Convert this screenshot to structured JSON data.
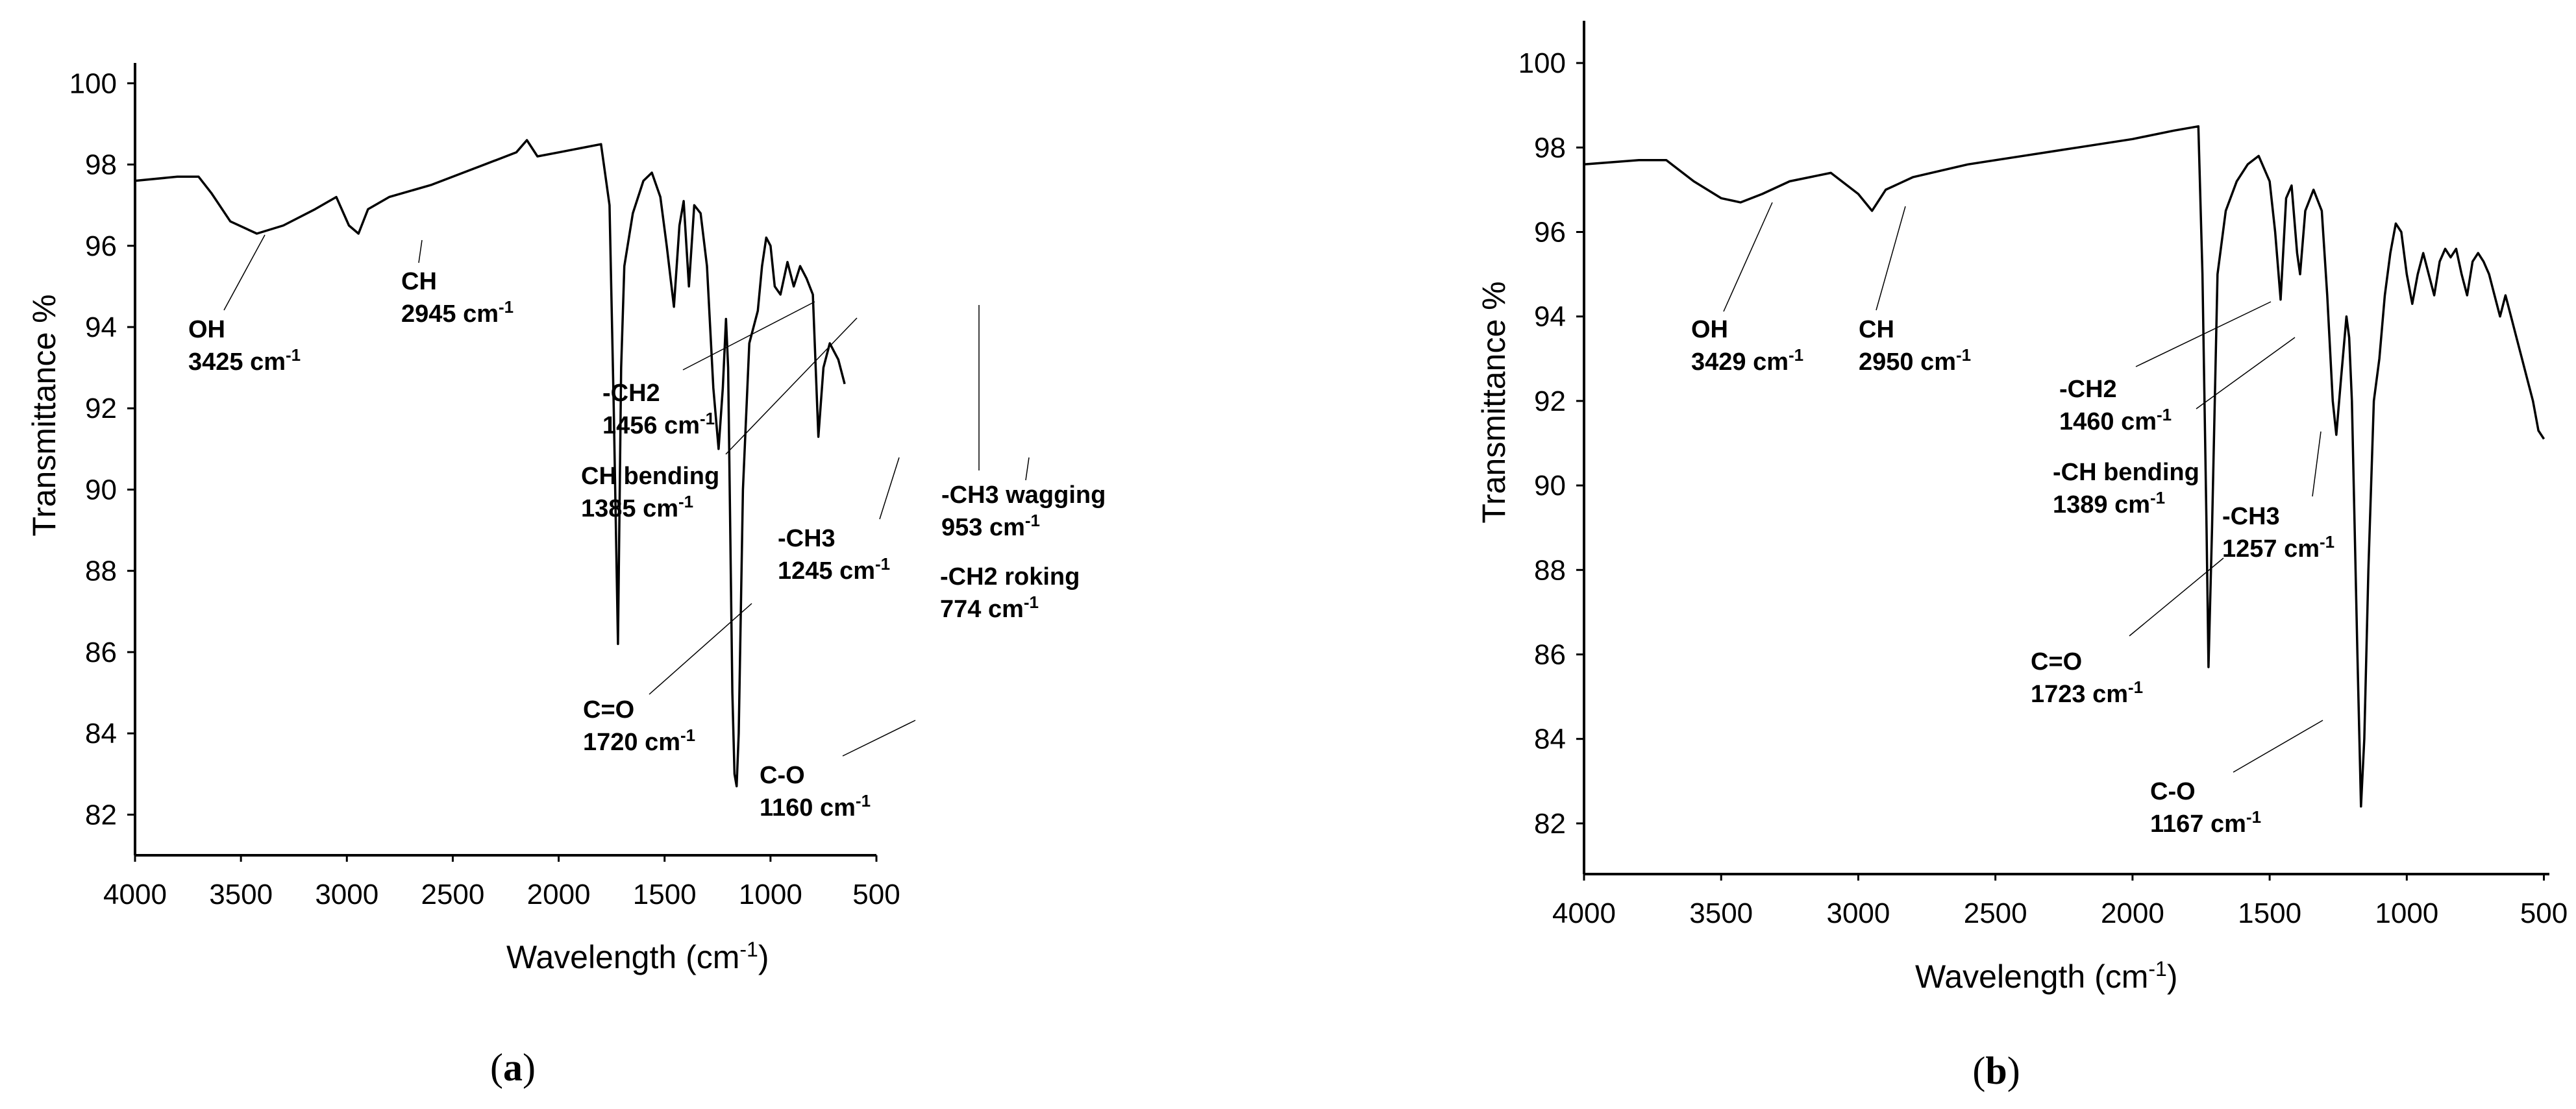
{
  "chart_data": [
    {
      "type": "line",
      "panel_label": "a",
      "xlabel": "Wavelength (cm",
      "xlabel_sup": "-1",
      "xlabel_end": ")",
      "ylabel": "Transmittance %",
      "xlim": [
        4000,
        500
      ],
      "ylim": [
        81,
        100.5
      ],
      "x_ticks": [
        4000,
        3500,
        3000,
        2500,
        2000,
        1500,
        1000,
        500
      ],
      "y_ticks": [
        100,
        98,
        96,
        94,
        92,
        90,
        88,
        86,
        84,
        82
      ],
      "series": [
        {
          "name": "spectrum a",
          "x": [
            4000,
            3800,
            3700,
            3640,
            3550,
            3425,
            3300,
            3150,
            3050,
            2990,
            2945,
            2900,
            2800,
            2600,
            2400,
            2200,
            2150,
            2100,
            2000,
            1900,
            1800,
            1760,
            1740,
            1720,
            1705,
            1690,
            1650,
            1600,
            1560,
            1520,
            1490,
            1456,
            1430,
            1410,
            1385,
            1360,
            1330,
            1300,
            1270,
            1245,
            1225,
            1210,
            1200,
            1180,
            1170,
            1160,
            1150,
            1130,
            1100,
            1060,
            1040,
            1020,
            1000,
            980,
            953,
            920,
            890,
            860,
            830,
            800,
            774,
            750,
            720,
            700,
            680,
            650
          ],
          "y": [
            97.6,
            97.7,
            97.7,
            97.3,
            96.6,
            96.3,
            96.5,
            96.9,
            97.2,
            96.5,
            96.3,
            96.9,
            97.2,
            97.5,
            97.9,
            98.3,
            98.6,
            98.2,
            98.3,
            98.4,
            98.5,
            97.0,
            92.0,
            86.2,
            93.0,
            95.5,
            96.8,
            97.6,
            97.8,
            97.2,
            96.0,
            94.5,
            96.5,
            97.1,
            95.0,
            97.0,
            96.8,
            95.5,
            92.5,
            91.0,
            92.5,
            94.2,
            93.0,
            85.0,
            83.0,
            82.7,
            84.0,
            90.0,
            93.6,
            94.4,
            95.5,
            96.2,
            96.0,
            95.0,
            94.8,
            95.6,
            95.0,
            95.5,
            95.2,
            94.8,
            91.3,
            93.0,
            93.6,
            93.4,
            93.2,
            92.6
          ]
        }
      ],
      "annotations": [
        {
          "label": "OH",
          "wavenumber": "3425 cm",
          "sup": "-1"
        },
        {
          "label": "CH",
          "wavenumber": "2945 cm",
          "sup": "-1"
        },
        {
          "label": "-CH2",
          "wavenumber": "1456 cm",
          "sup": "-1"
        },
        {
          "label": "CH bending",
          "wavenumber": "1385 cm",
          "sup": "-1"
        },
        {
          "label": "-CH3",
          "wavenumber": "1245 cm",
          "sup": "-1"
        },
        {
          "label": "-CH3 wagging",
          "wavenumber": "953 cm",
          "sup": "-1"
        },
        {
          "label": "-CH2 roking",
          "wavenumber": "774 cm",
          "sup": "-1"
        },
        {
          "label": "C=O",
          "wavenumber": "1720 cm",
          "sup": "-1"
        },
        {
          "label": "C-O",
          "wavenumber": "1160 cm",
          "sup": "-1"
        }
      ]
    },
    {
      "type": "line",
      "panel_label": "b",
      "xlabel": "Wavelength (cm",
      "xlabel_sup": "-1",
      "xlabel_end": ")",
      "ylabel": "Transmittance %",
      "xlim": [
        4000,
        480
      ],
      "ylim": [
        80.8,
        101
      ],
      "x_ticks": [
        4000,
        3500,
        3000,
        2500,
        2000,
        1500,
        1000,
        500
      ],
      "y_ticks": [
        100,
        98,
        96,
        94,
        92,
        90,
        88,
        86,
        84,
        82
      ],
      "series": [
        {
          "name": "spectrum b",
          "x": [
            4000,
            3800,
            3700,
            3600,
            3500,
            3429,
            3350,
            3250,
            3100,
            3000,
            2950,
            2900,
            2800,
            2600,
            2400,
            2200,
            2000,
            1850,
            1760,
            1745,
            1730,
            1723,
            1710,
            1690,
            1660,
            1620,
            1580,
            1540,
            1500,
            1480,
            1460,
            1440,
            1420,
            1400,
            1389,
            1370,
            1340,
            1310,
            1290,
            1270,
            1257,
            1240,
            1220,
            1210,
            1200,
            1180,
            1167,
            1155,
            1140,
            1120,
            1100,
            1080,
            1060,
            1040,
            1020,
            1000,
            980,
            960,
            940,
            920,
            900,
            880,
            860,
            840,
            820,
            800,
            780,
            760,
            740,
            720,
            700,
            680,
            660,
            640,
            620,
            600,
            580,
            560,
            540,
            520,
            500
          ],
          "y": [
            97.6,
            97.7,
            97.7,
            97.2,
            96.8,
            96.7,
            96.9,
            97.2,
            97.4,
            96.9,
            96.5,
            97.0,
            97.3,
            97.6,
            97.8,
            98.0,
            98.2,
            98.4,
            98.5,
            95.0,
            89.0,
            85.7,
            89.0,
            95.0,
            96.5,
            97.2,
            97.6,
            97.8,
            97.2,
            96.0,
            94.4,
            96.8,
            97.1,
            95.5,
            95.0,
            96.5,
            97.0,
            96.5,
            94.5,
            92.0,
            91.2,
            92.5,
            94.0,
            93.5,
            92.0,
            86.0,
            82.4,
            84.0,
            88.0,
            92.0,
            93.0,
            94.5,
            95.5,
            96.2,
            96.0,
            95.0,
            94.3,
            95.0,
            95.5,
            95.0,
            94.5,
            95.3,
            95.6,
            95.4,
            95.6,
            95.0,
            94.5,
            95.3,
            95.5,
            95.3,
            95.0,
            94.5,
            94.0,
            94.5,
            94.0,
            93.5,
            93.0,
            92.5,
            92.0,
            91.3,
            91.1
          ]
        }
      ],
      "annotations": [
        {
          "label": "OH",
          "wavenumber": "3429 cm",
          "sup": "-1"
        },
        {
          "label": "CH",
          "wavenumber": "2950 cm",
          "sup": "-1"
        },
        {
          "label": "-CH2",
          "wavenumber": "1460 cm",
          "sup": "-1"
        },
        {
          "label": "-CH bending",
          "wavenumber": "1389 cm",
          "sup": "-1"
        },
        {
          "label": "-CH3",
          "wavenumber": "1257 cm",
          "sup": "-1"
        },
        {
          "label": "C=O",
          "wavenumber": "1723 cm",
          "sup": "-1"
        },
        {
          "label": "C-O",
          "wavenumber": "1167 cm",
          "sup": "-1"
        }
      ]
    }
  ]
}
